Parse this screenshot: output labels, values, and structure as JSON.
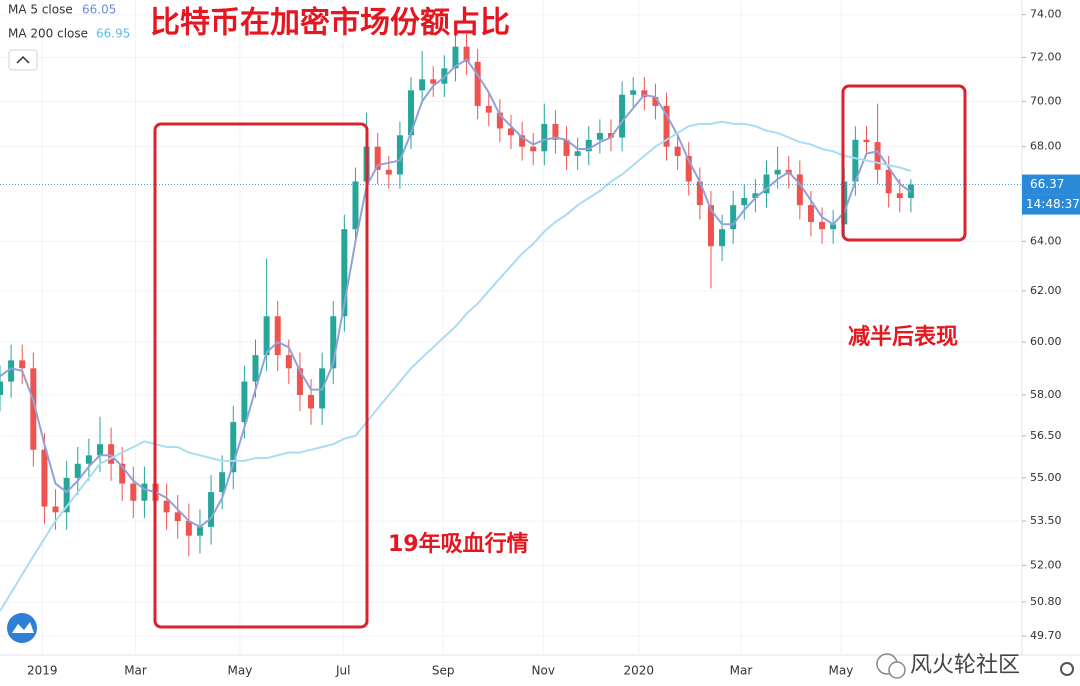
{
  "chart_data": {
    "type": "candlestick",
    "title": "比特币在加密市场份额占比",
    "annotations": [
      "19年吸血行情",
      "减半后表现"
    ],
    "watermark": "风火轮社区",
    "countdown": "14:48:37",
    "log_scale": true,
    "xlim": [
      0,
      92
    ],
    "xticks": [
      {
        "value": 3.8,
        "label": "2019"
      },
      {
        "value": 12.2,
        "label": "Mar"
      },
      {
        "value": 21.6,
        "label": "May"
      },
      {
        "value": 30.9,
        "label": "Jul"
      },
      {
        "value": 39.9,
        "label": "Sep"
      },
      {
        "value": 48.9,
        "label": "Nov"
      },
      {
        "value": 57.5,
        "label": "2020"
      },
      {
        "value": 66.7,
        "label": "Mar"
      },
      {
        "value": 75.7,
        "label": "May"
      }
    ],
    "ylim": [
      49.1,
      74.7
    ],
    "yticks": [
      {
        "value": 49.7,
        "label": "49.70"
      },
      {
        "value": 50.8,
        "label": "50.80"
      },
      {
        "value": 52,
        "label": "52.00"
      },
      {
        "value": 53.5,
        "label": "53.50"
      },
      {
        "value": 55,
        "label": "55.00"
      },
      {
        "value": 56.5,
        "label": "56.50"
      },
      {
        "value": 58,
        "label": "58.00"
      },
      {
        "value": 60,
        "label": "60.00"
      },
      {
        "value": 62,
        "label": "62.00"
      },
      {
        "value": 64,
        "label": "64.00"
      },
      {
        "value": 68,
        "label": "68.00"
      },
      {
        "value": 70,
        "label": "70.00"
      },
      {
        "value": 72,
        "label": "72.00"
      },
      {
        "value": 74,
        "label": "74.00"
      }
    ],
    "up_color": "#26a69a",
    "down_color": "#ef5350",
    "candles": {
      "open": [
        58.0,
        58.5,
        59.3,
        59.0,
        56.0,
        54.0,
        53.8,
        55.0,
        55.5,
        55.8,
        56.2,
        55.5,
        54.8,
        54.2,
        54.8,
        54.2,
        53.8,
        53.5,
        53.0,
        53.3,
        54.5,
        55.2,
        57.0,
        58.5,
        59.5,
        61.0,
        59.5,
        59.0,
        58.0,
        57.5,
        59.0,
        61.0,
        64.5,
        66.5,
        68.0,
        67.0,
        66.8,
        68.5,
        70.5,
        71.0,
        70.8,
        71.5,
        72.5,
        71.8,
        69.8,
        69.5,
        68.8,
        68.5,
        68.0,
        67.8,
        69.0,
        68.3,
        67.6,
        67.8,
        68.3,
        68.6,
        68.4,
        70.3,
        70.5,
        70.2,
        69.8,
        68.0,
        67.6,
        66.5,
        65.5,
        63.8,
        64.5,
        65.5,
        65.8,
        66.0,
        66.8,
        67.0,
        66.8,
        65.5,
        64.8,
        64.5,
        64.7,
        66.5,
        68.3,
        68.2,
        67.0,
        66.0,
        65.8
      ],
      "high": [
        59.1,
        59.9,
        59.9,
        59.6,
        56.6,
        54.6,
        55.6,
        56.1,
        56.4,
        57.2,
        56.8,
        56.1,
        55.4,
        55.4,
        55.4,
        54.8,
        54.4,
        54.1,
        53.9,
        55.1,
        55.8,
        57.6,
        59.1,
        60.1,
        63.3,
        61.6,
        60.1,
        59.6,
        58.6,
        59.6,
        61.6,
        65.1,
        67.1,
        69.5,
        68.6,
        67.6,
        69.1,
        71.1,
        72.3,
        71.6,
        72.1,
        73.1,
        73.1,
        72.4,
        70.4,
        70.1,
        69.4,
        69.1,
        68.6,
        69.9,
        69.6,
        68.9,
        68.4,
        68.9,
        69.2,
        69.2,
        70.9,
        71.1,
        71.1,
        70.8,
        70.4,
        68.6,
        68.2,
        67.1,
        66.1,
        65.1,
        66.1,
        66.4,
        66.6,
        67.4,
        68.0,
        67.6,
        67.4,
        66.1,
        65.4,
        65.3,
        67.1,
        68.9,
        68.9,
        69.9,
        67.6,
        66.6,
        66.6
      ],
      "low": [
        57.4,
        57.9,
        58.4,
        55.4,
        53.4,
        53.2,
        53.2,
        54.4,
        54.9,
        55.2,
        54.9,
        54.2,
        53.6,
        53.6,
        53.6,
        53.2,
        52.9,
        52.3,
        52.4,
        52.7,
        53.9,
        54.6,
        56.4,
        57.9,
        58.9,
        58.9,
        58.4,
        57.4,
        56.9,
        56.9,
        58.4,
        60.4,
        63.9,
        65.9,
        66.4,
        66.2,
        66.2,
        67.9,
        69.9,
        70.2,
        70.2,
        70.9,
        71.2,
        69.2,
        68.9,
        68.2,
        67.9,
        67.4,
        67.2,
        67.2,
        67.7,
        67.0,
        67.0,
        67.2,
        67.7,
        67.8,
        67.8,
        69.7,
        69.6,
        69.2,
        67.4,
        67.0,
        65.9,
        64.9,
        62.1,
        63.2,
        63.9,
        64.9,
        65.2,
        65.4,
        66.2,
        66.2,
        64.9,
        64.2,
        63.9,
        63.9,
        64.1,
        65.9,
        67.6,
        66.4,
        65.4,
        65.2,
        65.2
      ],
      "close": [
        58.5,
        59.3,
        59.0,
        56.0,
        54.0,
        53.8,
        55.0,
        55.5,
        55.8,
        56.2,
        55.5,
        54.8,
        54.2,
        54.8,
        54.2,
        53.8,
        53.5,
        53.0,
        53.3,
        54.5,
        55.2,
        57.0,
        58.5,
        59.5,
        61.0,
        59.5,
        59.0,
        58.0,
        57.5,
        59.0,
        61.0,
        64.5,
        66.5,
        68.0,
        67.0,
        66.8,
        68.5,
        70.5,
        71.0,
        70.8,
        71.5,
        72.5,
        71.8,
        69.8,
        69.5,
        68.8,
        68.5,
        68.0,
        67.8,
        69.0,
        68.3,
        67.6,
        67.8,
        68.3,
        68.6,
        68.4,
        70.3,
        70.5,
        70.2,
        69.8,
        68.0,
        67.6,
        66.5,
        65.5,
        63.8,
        64.5,
        65.5,
        65.8,
        66.0,
        66.8,
        67.0,
        66.8,
        65.5,
        64.8,
        64.5,
        64.7,
        66.5,
        68.3,
        68.2,
        67.0,
        66.0,
        65.8,
        66.37
      ]
    },
    "series": [
      {
        "name": "MA 5 close",
        "color": "#8fa3d9",
        "values": [
          58.7,
          59.0,
          58.9,
          57.8,
          56.2,
          54.8,
          54.5,
          54.9,
          55.4,
          55.8,
          55.8,
          55.4,
          54.9,
          54.6,
          54.5,
          54.3,
          53.9,
          53.5,
          53.3,
          53.6,
          54.3,
          55.5,
          56.8,
          58.2,
          59.6,
          60.0,
          59.8,
          58.9,
          58.2,
          58.2,
          59.2,
          61.5,
          64.0,
          66.3,
          67.2,
          67.3,
          67.4,
          68.6,
          70.0,
          70.7,
          71.1,
          71.6,
          71.9,
          71.2,
          70.4,
          69.4,
          68.9,
          68.4,
          68.1,
          68.3,
          68.4,
          68.3,
          67.9,
          67.9,
          68.2,
          68.4,
          69.1,
          69.7,
          70.3,
          70.2,
          69.4,
          68.5,
          67.4,
          66.5,
          65.3,
          64.7,
          64.7,
          65.3,
          65.8,
          66.2,
          66.6,
          66.9,
          66.4,
          65.7,
          65.0,
          64.7,
          65.2,
          66.5,
          67.7,
          67.8,
          67.1,
          66.4,
          66.05
        ]
      },
      {
        "name": "MA 200 close",
        "color": "#a9dcf2",
        "values": [
          50.5,
          51.1,
          51.7,
          52.3,
          52.9,
          53.5,
          54.0,
          54.5,
          55.0,
          55.5,
          55.7,
          55.9,
          56.1,
          56.3,
          56.2,
          56.1,
          56.1,
          55.9,
          55.8,
          55.7,
          55.6,
          55.6,
          55.6,
          55.7,
          55.7,
          55.8,
          55.9,
          55.9,
          56.0,
          56.1,
          56.2,
          56.4,
          56.5,
          57.0,
          57.5,
          58.0,
          58.5,
          59.0,
          59.4,
          59.8,
          60.2,
          60.6,
          61.1,
          61.5,
          62.0,
          62.5,
          63.0,
          63.5,
          63.9,
          64.4,
          64.8,
          65.1,
          65.5,
          65.8,
          66.1,
          66.5,
          66.8,
          67.2,
          67.6,
          68.0,
          68.3,
          68.6,
          68.9,
          69.0,
          69.0,
          69.1,
          69.0,
          69.0,
          68.9,
          68.7,
          68.6,
          68.4,
          68.2,
          68.1,
          67.9,
          67.8,
          67.6,
          67.5,
          67.4,
          67.3,
          67.2,
          67.1,
          66.95
        ]
      }
    ]
  }
}
